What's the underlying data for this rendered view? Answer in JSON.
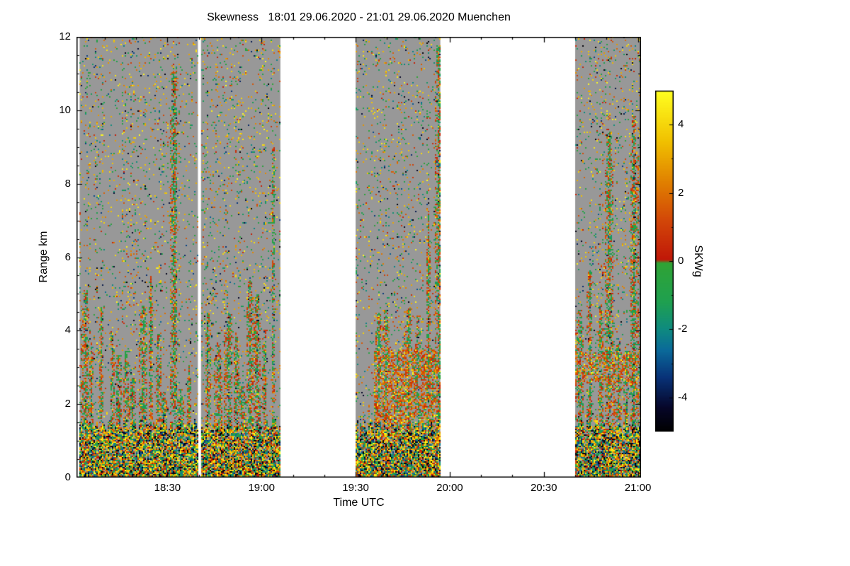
{
  "chart_data": {
    "type": "heatmap",
    "title": "Skewness   18:01 29.06.2020 - 21:01 29.06.2020 Muenchen",
    "xlabel": "Time UTC",
    "ylabel": "Range km",
    "x_start_label": "18:01",
    "x_end_label": "21:01",
    "x_range_minutes": [
      0,
      180
    ],
    "x_ticks": [
      {
        "t": 29,
        "label": "18:30"
      },
      {
        "t": 59,
        "label": "19:00"
      },
      {
        "t": 89,
        "label": "19:30"
      },
      {
        "t": 119,
        "label": "20:00"
      },
      {
        "t": 149,
        "label": "20:30"
      },
      {
        "t": 179,
        "label": "21:00"
      }
    ],
    "x_minor_every": 10,
    "y_range_km": [
      0,
      12
    ],
    "y_ticks": [
      {
        "v": 0,
        "label": "0"
      },
      {
        "v": 2,
        "label": "2"
      },
      {
        "v": 4,
        "label": "4"
      },
      {
        "v": 6,
        "label": "6"
      },
      {
        "v": 8,
        "label": "8"
      },
      {
        "v": 10,
        "label": "10"
      },
      {
        "v": 12,
        "label": "12"
      }
    ],
    "y_minor_every": 0.5,
    "colorbar": {
      "label": "SKWg",
      "range": [
        -5,
        5
      ],
      "ticks": [
        {
          "v": 4,
          "label": "4"
        },
        {
          "v": 2,
          "label": "2"
        },
        {
          "v": 0,
          "label": "0"
        },
        {
          "v": -2,
          "label": "-2"
        },
        {
          "v": -4,
          "label": "-4"
        }
      ],
      "minor_every": 1
    },
    "colors": {
      "background": "#ffffff",
      "data_gray": "#989898",
      "axis": "#000000",
      "colormap": [
        {
          "v": -5.0,
          "c": "#000000"
        },
        {
          "v": -4.3,
          "c": "#060628"
        },
        {
          "v": -3.4,
          "c": "#083278"
        },
        {
          "v": -2.6,
          "c": "#0a6a9a"
        },
        {
          "v": -2.0,
          "c": "#0e8a80"
        },
        {
          "v": -1.2,
          "c": "#1fa050"
        },
        {
          "v": -0.05,
          "c": "#2fa335"
        },
        {
          "v": 0.05,
          "c": "#c01708"
        },
        {
          "v": 1.2,
          "c": "#d24708"
        },
        {
          "v": 2.3,
          "c": "#e07f00"
        },
        {
          "v": 3.5,
          "c": "#f0c000"
        },
        {
          "v": 5.0,
          "c": "#ffff20"
        }
      ]
    },
    "segments": [
      {
        "t0": 1.0,
        "t1": 38.7
      },
      {
        "t0": 39.7,
        "t1": 65.0
      },
      {
        "t0": 89.0,
        "t1": 116.0,
        "plumes_from": 95,
        "tall": true,
        "band": [
          1.3,
          3.5
        ]
      },
      {
        "t0": 159.0,
        "t1": 180.0,
        "tall": true,
        "band": [
          2.6,
          3.4
        ]
      }
    ],
    "structure": {
      "boundary_layer_km": 1.3,
      "plume_spacing_min": 2.8,
      "plume_height_km": [
        2,
        5.5
      ],
      "speckle_prob": 0.07
    }
  }
}
